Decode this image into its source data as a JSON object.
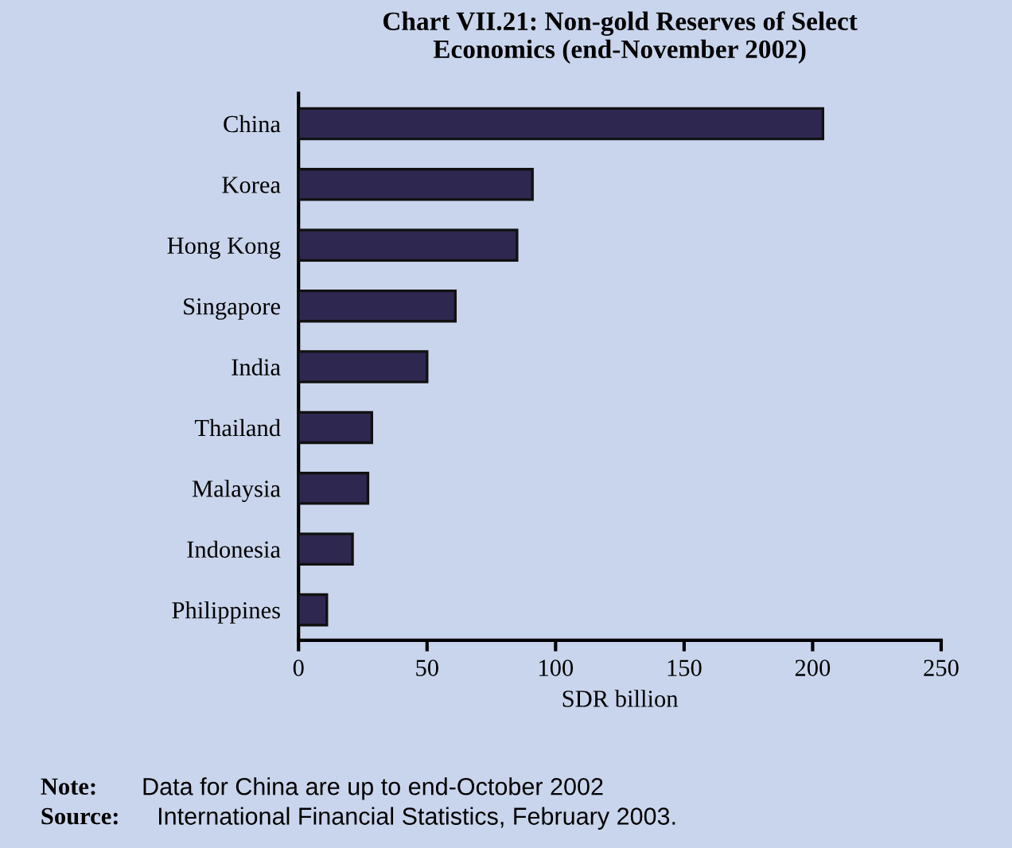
{
  "chart_data": {
    "type": "bar",
    "orientation": "horizontal",
    "title": "Chart VII.21: Non-gold Reserves of Select\nEconomics (end-November 2002)",
    "categories": [
      "China",
      "Korea",
      "Hong Kong",
      "Singapore",
      "India",
      "Thailand",
      "Malaysia",
      "Indonesia",
      "Philippines"
    ],
    "values": [
      204,
      91,
      85,
      61,
      50,
      28.5,
      27,
      21,
      11
    ],
    "color": "#2e2850",
    "xlabel": "SDR billion",
    "xlim": [
      0,
      250
    ],
    "xticks": [
      0,
      50,
      100,
      150,
      200,
      250
    ],
    "grid": false,
    "annotations": [
      "Note:\tData for China are up to end-October 2002",
      "Source:\tInternational Financial Statistics, February 2003."
    ]
  }
}
